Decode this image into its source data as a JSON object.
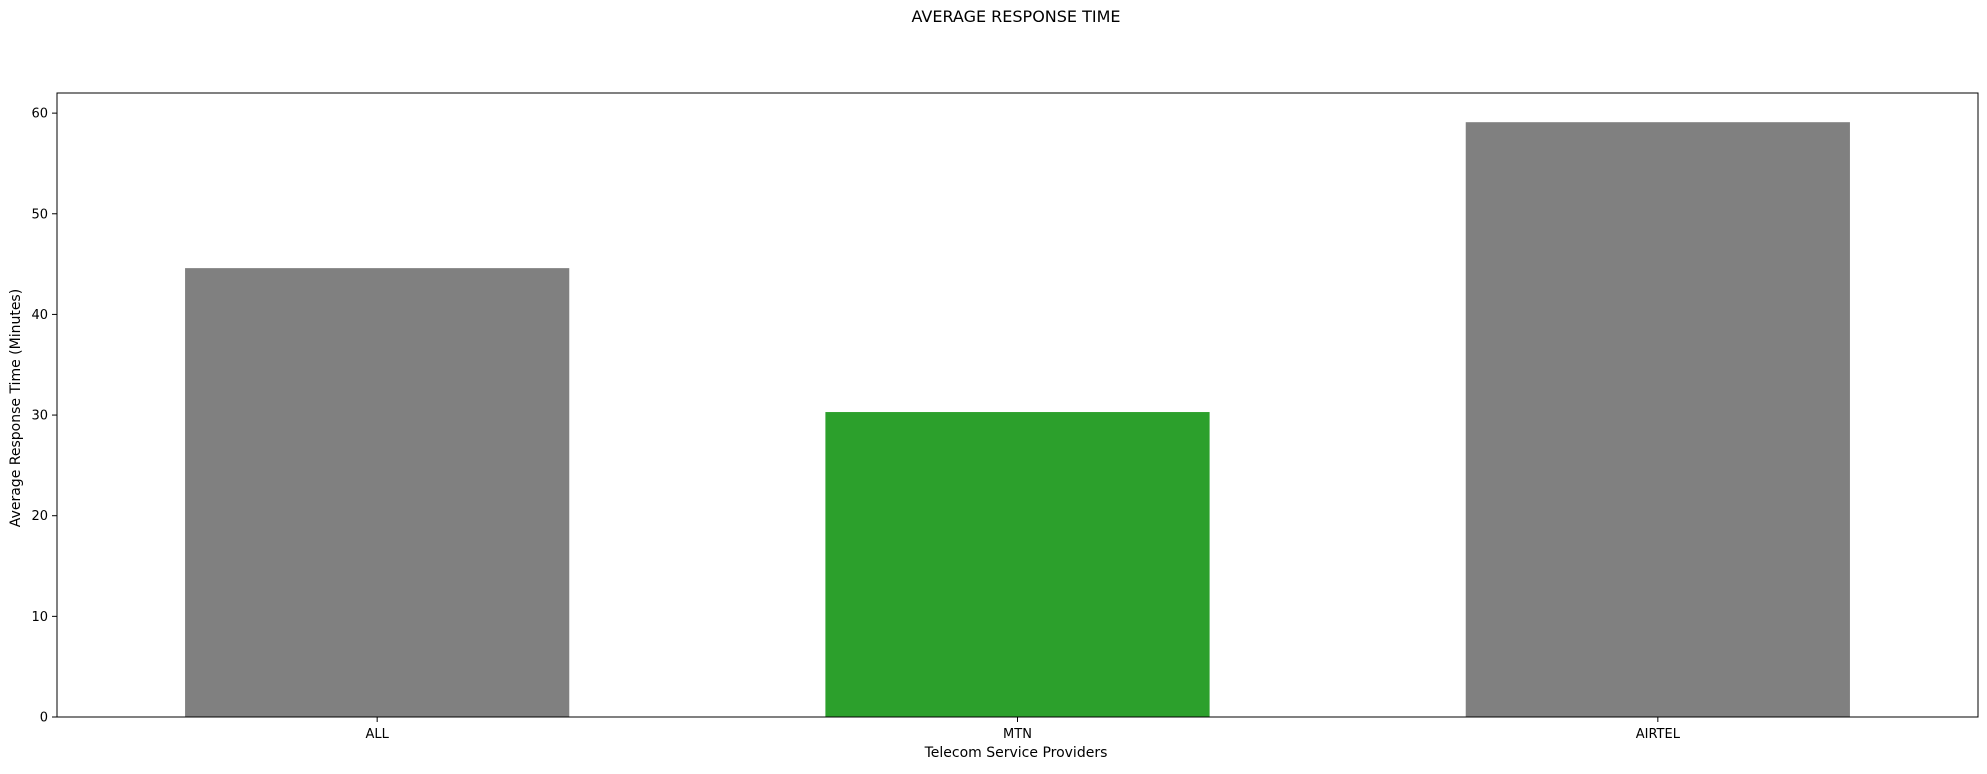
{
  "chart_data": {
    "type": "bar",
    "title": "AVERAGE RESPONSE TIME",
    "xlabel": "Telecom Service Providers",
    "ylabel": "Average Response Time (Minutes)",
    "categories": [
      "ALL",
      "MTN",
      "AIRTEL"
    ],
    "values": [
      44.6,
      30.3,
      59.1
    ],
    "colors": [
      "#808080",
      "#2ca02c",
      "#808080"
    ],
    "ylim": [
      0,
      62
    ],
    "yticks": [
      0,
      10,
      20,
      30,
      40,
      50,
      60
    ],
    "grid": false,
    "legend": "none"
  }
}
